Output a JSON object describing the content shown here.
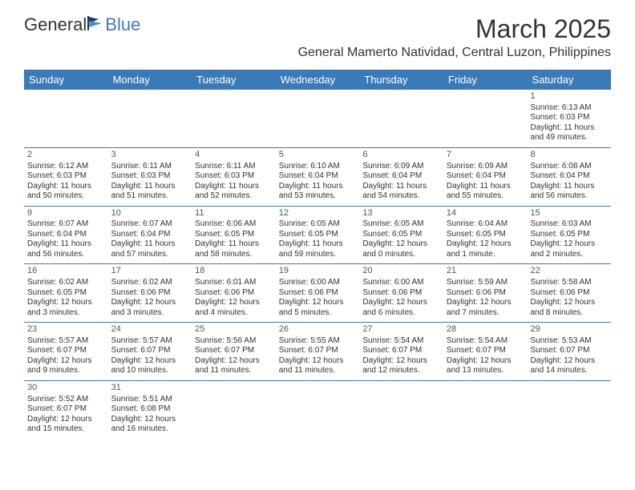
{
  "logo": {
    "left": "General",
    "right": "Blue",
    "flag_color1": "#1d3a5f",
    "flag_color2": "#4a8fd0"
  },
  "title": "March 2025",
  "location": "General Mamerto Natividad, Central Luzon, Philippines",
  "colors": {
    "header_bg": "#3a7ab8",
    "header_text": "#ffffff",
    "border": "#3a7ab8",
    "text": "#333333",
    "background": "#ffffff"
  },
  "typography": {
    "title_fontsize": 32,
    "location_fontsize": 16,
    "dayhead_fontsize": 13,
    "daynum_fontsize": 11,
    "info_fontsize": 10
  },
  "day_names": [
    "Sunday",
    "Monday",
    "Tuesday",
    "Wednesday",
    "Thursday",
    "Friday",
    "Saturday"
  ],
  "weeks": [
    [
      null,
      null,
      null,
      null,
      null,
      null,
      {
        "n": "1",
        "sunrise": "6:13 AM",
        "sunset": "6:03 PM",
        "daylight": "11 hours and 49 minutes."
      }
    ],
    [
      {
        "n": "2",
        "sunrise": "6:12 AM",
        "sunset": "6:03 PM",
        "daylight": "11 hours and 50 minutes."
      },
      {
        "n": "3",
        "sunrise": "6:11 AM",
        "sunset": "6:03 PM",
        "daylight": "11 hours and 51 minutes."
      },
      {
        "n": "4",
        "sunrise": "6:11 AM",
        "sunset": "6:03 PM",
        "daylight": "11 hours and 52 minutes."
      },
      {
        "n": "5",
        "sunrise": "6:10 AM",
        "sunset": "6:04 PM",
        "daylight": "11 hours and 53 minutes."
      },
      {
        "n": "6",
        "sunrise": "6:09 AM",
        "sunset": "6:04 PM",
        "daylight": "11 hours and 54 minutes."
      },
      {
        "n": "7",
        "sunrise": "6:09 AM",
        "sunset": "6:04 PM",
        "daylight": "11 hours and 55 minutes."
      },
      {
        "n": "8",
        "sunrise": "6:08 AM",
        "sunset": "6:04 PM",
        "daylight": "11 hours and 56 minutes."
      }
    ],
    [
      {
        "n": "9",
        "sunrise": "6:07 AM",
        "sunset": "6:04 PM",
        "daylight": "11 hours and 56 minutes."
      },
      {
        "n": "10",
        "sunrise": "6:07 AM",
        "sunset": "6:04 PM",
        "daylight": "11 hours and 57 minutes."
      },
      {
        "n": "11",
        "sunrise": "6:06 AM",
        "sunset": "6:05 PM",
        "daylight": "11 hours and 58 minutes."
      },
      {
        "n": "12",
        "sunrise": "6:05 AM",
        "sunset": "6:05 PM",
        "daylight": "11 hours and 59 minutes."
      },
      {
        "n": "13",
        "sunrise": "6:05 AM",
        "sunset": "6:05 PM",
        "daylight": "12 hours and 0 minutes."
      },
      {
        "n": "14",
        "sunrise": "6:04 AM",
        "sunset": "6:05 PM",
        "daylight": "12 hours and 1 minute."
      },
      {
        "n": "15",
        "sunrise": "6:03 AM",
        "sunset": "6:05 PM",
        "daylight": "12 hours and 2 minutes."
      }
    ],
    [
      {
        "n": "16",
        "sunrise": "6:02 AM",
        "sunset": "6:05 PM",
        "daylight": "12 hours and 3 minutes."
      },
      {
        "n": "17",
        "sunrise": "6:02 AM",
        "sunset": "6:06 PM",
        "daylight": "12 hours and 3 minutes."
      },
      {
        "n": "18",
        "sunrise": "6:01 AM",
        "sunset": "6:06 PM",
        "daylight": "12 hours and 4 minutes."
      },
      {
        "n": "19",
        "sunrise": "6:00 AM",
        "sunset": "6:06 PM",
        "daylight": "12 hours and 5 minutes."
      },
      {
        "n": "20",
        "sunrise": "6:00 AM",
        "sunset": "6:06 PM",
        "daylight": "12 hours and 6 minutes."
      },
      {
        "n": "21",
        "sunrise": "5:59 AM",
        "sunset": "6:06 PM",
        "daylight": "12 hours and 7 minutes."
      },
      {
        "n": "22",
        "sunrise": "5:58 AM",
        "sunset": "6:06 PM",
        "daylight": "12 hours and 8 minutes."
      }
    ],
    [
      {
        "n": "23",
        "sunrise": "5:57 AM",
        "sunset": "6:07 PM",
        "daylight": "12 hours and 9 minutes."
      },
      {
        "n": "24",
        "sunrise": "5:57 AM",
        "sunset": "6:07 PM",
        "daylight": "12 hours and 10 minutes."
      },
      {
        "n": "25",
        "sunrise": "5:56 AM",
        "sunset": "6:07 PM",
        "daylight": "12 hours and 11 minutes."
      },
      {
        "n": "26",
        "sunrise": "5:55 AM",
        "sunset": "6:07 PM",
        "daylight": "12 hours and 11 minutes."
      },
      {
        "n": "27",
        "sunrise": "5:54 AM",
        "sunset": "6:07 PM",
        "daylight": "12 hours and 12 minutes."
      },
      {
        "n": "28",
        "sunrise": "5:54 AM",
        "sunset": "6:07 PM",
        "daylight": "12 hours and 13 minutes."
      },
      {
        "n": "29",
        "sunrise": "5:53 AM",
        "sunset": "6:07 PM",
        "daylight": "12 hours and 14 minutes."
      }
    ],
    [
      {
        "n": "30",
        "sunrise": "5:52 AM",
        "sunset": "6:07 PM",
        "daylight": "12 hours and 15 minutes."
      },
      {
        "n": "31",
        "sunrise": "5:51 AM",
        "sunset": "6:08 PM",
        "daylight": "12 hours and 16 minutes."
      },
      null,
      null,
      null,
      null,
      null
    ]
  ],
  "labels": {
    "sunrise": "Sunrise: ",
    "sunset": "Sunset: ",
    "daylight": "Daylight: "
  }
}
